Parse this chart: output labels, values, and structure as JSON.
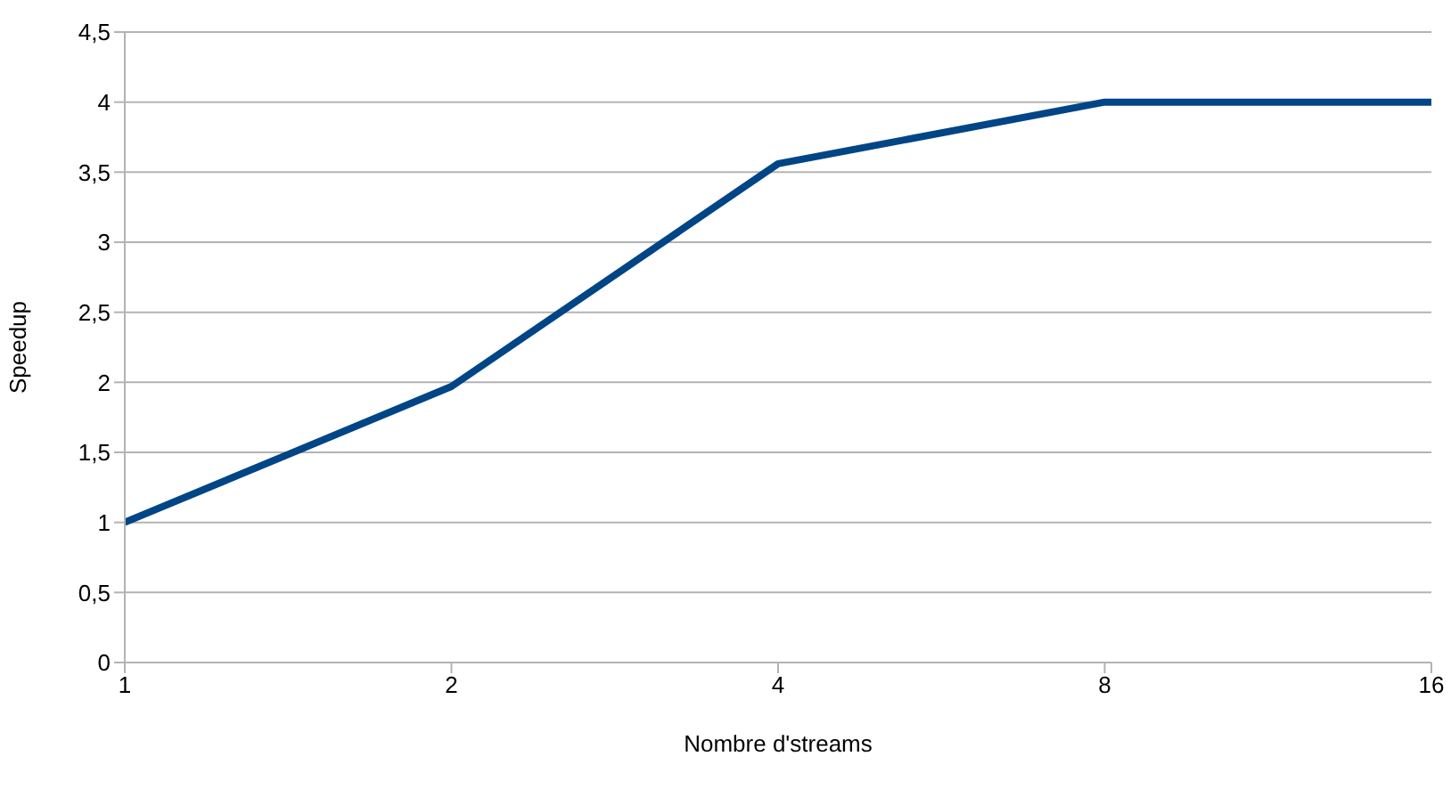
{
  "chart_data": {
    "type": "line",
    "xlabel": "Nombre d'streams",
    "ylabel": "Speedup",
    "x": [
      1,
      2,
      4,
      8,
      16
    ],
    "series": [
      {
        "color": "#004586",
        "values": [
          1,
          1.97,
          3.56,
          4,
          4
        ]
      }
    ],
    "log": "x",
    "xlim": [
      1,
      16
    ],
    "xticks": [
      1,
      2,
      4,
      8,
      16
    ],
    "ylim": [
      0,
      4.5
    ],
    "yticks": [
      0,
      {
        "value": 0.5,
        "label": "0,5"
      },
      1,
      {
        "value": 1.5,
        "label": "1,5"
      },
      2,
      {
        "value": 2.5,
        "label": "2,5"
      },
      3,
      {
        "value": 3.5,
        "label": "3,5"
      },
      4,
      {
        "value": 4.5,
        "label": "4,5"
      }
    ],
    "grid": "y",
    "legend": false,
    "marker": "none",
    "line_style": "solid"
  }
}
